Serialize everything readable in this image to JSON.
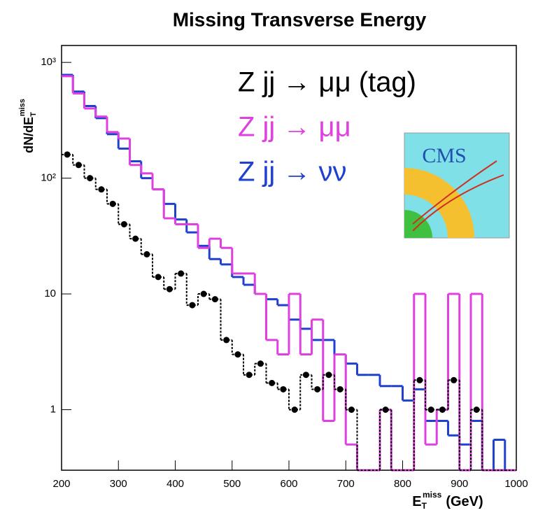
{
  "chart_data": {
    "type": "histogram",
    "title": "Missing Transverse Energy",
    "xlabel": {
      "main": "E",
      "sub": "T",
      "sup": "miss",
      "unit": "(GeV)"
    },
    "ylabel": {
      "main": "dN/dE",
      "sub": "T",
      "sup": "miss"
    },
    "annotations": [
      "CMS"
    ],
    "log_y": true,
    "bins": [
      200,
      220,
      240,
      260,
      280,
      300,
      320,
      340,
      360,
      380,
      400,
      420,
      440,
      460,
      480,
      500,
      520,
      540,
      560,
      580,
      600,
      620,
      640,
      660,
      680,
      700,
      720,
      740,
      760,
      780,
      800,
      820,
      840,
      860,
      880,
      900,
      920,
      940,
      960,
      980,
      1000
    ],
    "series": [
      {
        "name": "Z jj → μμ (tag)",
        "color": "#000000",
        "style": "points",
        "values": [
          160,
          130,
          100,
          80,
          60,
          40,
          30,
          22,
          14,
          11,
          15,
          8,
          10,
          9,
          4,
          3,
          2,
          2.5,
          1.7,
          1.5,
          1,
          2,
          1.5,
          2,
          1.5,
          1,
          0,
          0,
          1,
          0,
          0,
          1.8,
          1,
          1,
          1.8,
          0,
          1,
          0,
          0,
          0
        ]
      },
      {
        "name": "Z jj → μμ",
        "color": "#e040e0",
        "style": "step",
        "values": [
          760,
          540,
          400,
          340,
          250,
          220,
          130,
          110,
          80,
          45,
          40,
          40,
          25,
          30,
          25,
          15,
          15,
          10,
          4,
          3,
          10,
          3,
          6,
          0.8,
          3,
          0.5,
          0,
          0,
          1,
          0,
          0,
          10,
          0.5,
          1,
          10,
          0,
          10,
          0,
          0,
          0
        ]
      },
      {
        "name": "Z jj → νν",
        "color": "#2040d0",
        "style": "step",
        "values": [
          780,
          560,
          420,
          330,
          240,
          180,
          140,
          100,
          80,
          60,
          44,
          34,
          26,
          20,
          18,
          14,
          12,
          10,
          9,
          8,
          6,
          5,
          4,
          4,
          3,
          2.5,
          2,
          2,
          1.6,
          1.6,
          1.2,
          1.5,
          0.8,
          0.8,
          0.6,
          0.5,
          0.8,
          0,
          0.55,
          0
        ]
      }
    ],
    "xlim": [
      200,
      1000
    ],
    "xticks": [
      200,
      300,
      400,
      500,
      600,
      700,
      800,
      900,
      1000
    ],
    "ylim": [
      0.3,
      1400
    ],
    "yticks": [
      1,
      10,
      {
        "value": 100,
        "label": "10²"
      },
      {
        "value": 1000,
        "label": "10³"
      }
    ]
  }
}
